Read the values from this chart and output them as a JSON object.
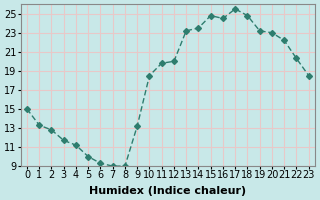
{
  "xlabel": "Humidex (Indice chaleur)",
  "ylabel": "",
  "x": [
    0,
    1,
    2,
    3,
    4,
    5,
    6,
    7,
    8,
    9,
    10,
    11,
    12,
    13,
    14,
    15,
    16,
    17,
    18,
    19,
    20,
    21,
    22,
    23
  ],
  "y": [
    15,
    13.3,
    12.8,
    11.7,
    11.2,
    10.0,
    9.3,
    9.0,
    9.0,
    13.2,
    18.5,
    19.8,
    20.0,
    23.2,
    23.5,
    24.8,
    24.5,
    25.5,
    24.8,
    23.2,
    23.0,
    22.2,
    20.3,
    18.5
  ],
  "line_color": "#2e7d6e",
  "marker": "D",
  "marker_size": 3,
  "background_color": "#c8e8e8",
  "grid_color": "#e8c8c8",
  "ylim": [
    9,
    26
  ],
  "xlim": [
    -0.5,
    23.5
  ],
  "yticks": [
    9,
    11,
    13,
    15,
    17,
    19,
    21,
    23,
    25
  ],
  "xticks": [
    0,
    1,
    2,
    3,
    4,
    5,
    6,
    7,
    8,
    9,
    10,
    11,
    12,
    13,
    14,
    15,
    16,
    17,
    18,
    19,
    20,
    21,
    22,
    23
  ],
  "tick_fontsize": 7,
  "xlabel_fontsize": 8
}
